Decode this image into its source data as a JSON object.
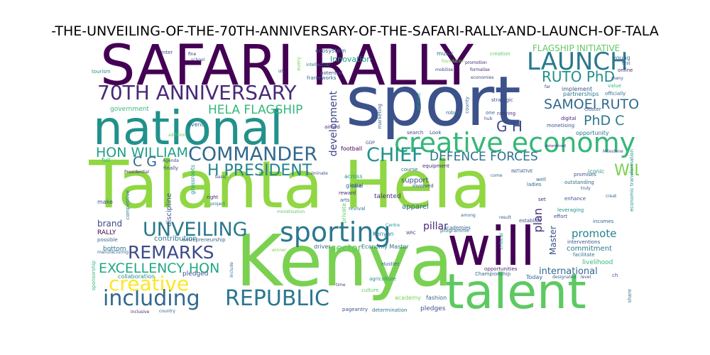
{
  "title": "-THE-UNVEILING-OF-THE-70TH-ANNIVERSARY-OF-THE-SAFARI-RALLY-AND-LAUNCH-OF-TALA",
  "palette": {
    "dark_purple": "#440154",
    "indigo": "#3b528b",
    "blue": "#31688e",
    "teal": "#21918c",
    "sea_green": "#35b779",
    "green": "#5ec962",
    "lime": "#90d743",
    "yellow": "#fde725"
  },
  "words": [
    {
      "text": "Talanta Hela",
      "color": "#90d743"
    },
    {
      "text": "Kenya",
      "color": "#7ad151"
    },
    {
      "text": "SAFARI RALLY",
      "color": "#440154"
    },
    {
      "text": "sport",
      "color": "#3b528b"
    },
    {
      "text": "will",
      "color": "#440154"
    },
    {
      "text": "national",
      "color": "#21918c"
    },
    {
      "text": "talent",
      "color": "#5ec962"
    },
    {
      "text": "sporting",
      "color": "#2a788e"
    },
    {
      "text": "creative economy",
      "color": "#35b779"
    },
    {
      "text": "70TH ANNIVERSARY",
      "color": "#482878"
    },
    {
      "text": "LAUNCH",
      "color": "#2a788e"
    },
    {
      "text": "including",
      "color": "#31688e"
    },
    {
      "text": "REPUBLIC",
      "color": "#2a788e"
    },
    {
      "text": "creative",
      "color": "#fde725"
    },
    {
      "text": "COMMANDER",
      "color": "#31688e"
    },
    {
      "text": "UNVEILING",
      "color": "#2a788e"
    },
    {
      "text": "CHIEF",
      "color": "#21918c"
    },
    {
      "text": "REMARKS",
      "color": "#3e4989"
    },
    {
      "text": "H PRESIDENT",
      "color": "#26828e"
    },
    {
      "text": "WILLIAM SAMOEI",
      "color": "#7ad151"
    },
    {
      "text": "HON WILLIAM",
      "color": "#1f9e89"
    },
    {
      "text": "EXCELLENCY HON",
      "color": "#22a884"
    },
    {
      "text": "HELA FLAGSHIP",
      "color": "#35b779"
    },
    {
      "text": "RUTO PhD",
      "color": "#21918c"
    },
    {
      "text": "SAMOEI RUTO",
      "color": "#31688e"
    },
    {
      "text": "DEFENCE FORCES",
      "color": "#2c728e"
    },
    {
      "text": "G H",
      "color": "#3e4989"
    },
    {
      "text": "PhD C",
      "color": "#2a788e"
    },
    {
      "text": "C G",
      "color": "#31688e"
    },
    {
      "text": "FLAGSHIP INITIATIVE",
      "color": "#5ec962"
    },
    {
      "text": "promote",
      "color": "#26828e"
    },
    {
      "text": "international",
      "color": "#31688e"
    },
    {
      "text": "Master",
      "color": "#3b528b"
    },
    {
      "text": "plan",
      "color": "#472d7b"
    },
    {
      "text": "pillar",
      "color": "#482878"
    },
    {
      "text": "development",
      "color": "#3e4989"
    },
    {
      "text": "sector",
      "color": "#5ec962"
    },
    {
      "text": "Innovation",
      "color": "#1f9e89"
    },
    {
      "text": "commitment",
      "color": "#2a788e"
    },
    {
      "text": "livelihood",
      "color": "#35b779"
    },
    {
      "text": "apparel",
      "color": "#31688e"
    },
    {
      "text": "support",
      "color": "#3b528b"
    },
    {
      "text": "talented",
      "color": "#472d7b"
    },
    {
      "text": "brand",
      "color": "#3e4989"
    },
    {
      "text": "RALLY",
      "color": "#440154"
    },
    {
      "text": "contribution",
      "color": "#2a788e"
    },
    {
      "text": "collaboration",
      "color": "#21918c"
    },
    {
      "text": "pledged",
      "color": "#3b528b"
    },
    {
      "text": "bottom",
      "color": "#2c728e"
    },
    {
      "text": "football",
      "color": "#440154"
    },
    {
      "text": "academy",
      "color": "#7ad151"
    },
    {
      "text": "fashion",
      "color": "#31688e"
    },
    {
      "text": "pledges",
      "color": "#3b528b"
    },
    {
      "text": "Today",
      "color": "#31688e"
    },
    {
      "text": "government",
      "color": "#35b779"
    },
    {
      "text": "ecosystem",
      "color": "#31688e"
    },
    {
      "text": "implement",
      "color": "#3b528b"
    },
    {
      "text": "partnerships",
      "color": "#2a788e"
    },
    {
      "text": "officially",
      "color": "#2c728e"
    },
    {
      "text": "rallying",
      "color": "#472d7b"
    },
    {
      "text": "digital",
      "color": "#482878"
    },
    {
      "text": "monetising",
      "color": "#3b528b"
    },
    {
      "text": "opportunity",
      "color": "#2c728e"
    },
    {
      "text": "promises",
      "color": "#3b528b"
    },
    {
      "text": "outstanding",
      "color": "#31688e"
    },
    {
      "text": "iconic",
      "color": "#1f9e89"
    },
    {
      "text": "enhance",
      "color": "#3b528b"
    },
    {
      "text": "ladies",
      "color": "#31688e"
    },
    {
      "text": "leveraging",
      "color": "#21918c"
    },
    {
      "text": "effort",
      "color": "#3e4989"
    },
    {
      "text": "incomes",
      "color": "#31688e"
    },
    {
      "text": "interventions",
      "color": "#3b528b"
    },
    {
      "text": "facilitate",
      "color": "#2c728e"
    },
    {
      "text": "Kenyan",
      "color": "#2a788e"
    },
    {
      "text": "Economy Master",
      "color": "#2c728e"
    },
    {
      "text": "driver",
      "color": "#31688e"
    },
    {
      "text": "winner",
      "color": "#7ad151"
    },
    {
      "text": "culture",
      "color": "#5ec962"
    },
    {
      "text": "agriculture",
      "color": "#21918c"
    },
    {
      "text": "Championship",
      "color": "#31688e"
    },
    {
      "text": "opportunities",
      "color": "#482878"
    },
    {
      "text": "designated",
      "color": "#31688e"
    },
    {
      "text": "level",
      "color": "#3e4989"
    },
    {
      "text": "pageantry",
      "color": "#3b528b"
    },
    {
      "text": "determination",
      "color": "#2a788e"
    },
    {
      "text": "entrepreneurship",
      "color": "#31688e"
    },
    {
      "text": "manufacturing",
      "color": "#31688e"
    },
    {
      "text": "possible",
      "color": "#31688e"
    },
    {
      "text": "make",
      "color": "#3b528b"
    },
    {
      "text": "competitive",
      "color": "#2c728e"
    },
    {
      "text": "discipline",
      "color": "#3b528b"
    },
    {
      "text": "grassroots",
      "color": "#21918c"
    },
    {
      "text": "Presidential",
      "color": "#482878"
    },
    {
      "text": "finally",
      "color": "#3e4989"
    },
    {
      "text": "full",
      "color": "#35b779"
    },
    {
      "text": "Agenda",
      "color": "#3e4989"
    },
    {
      "text": "addition",
      "color": "#5ec962"
    },
    {
      "text": "event",
      "color": "#31688e"
    },
    {
      "text": "tourism",
      "color": "#21918c"
    },
    {
      "text": "music",
      "color": "#31688e"
    },
    {
      "text": "creation",
      "color": "#5ec962"
    },
    {
      "text": "promotion",
      "color": "#482878"
    },
    {
      "text": "mobilise",
      "color": "#3e4989"
    },
    {
      "text": "formalise",
      "color": "#482878"
    },
    {
      "text": "foundation",
      "color": "#7ad151"
    },
    {
      "text": "young",
      "color": "#31688e"
    },
    {
      "text": "first",
      "color": "#3b528b"
    },
    {
      "text": "online",
      "color": "#482878"
    },
    {
      "text": "value",
      "color": "#35b779"
    },
    {
      "text": "far",
      "color": "#3e4989"
    },
    {
      "text": "frameworks",
      "color": "#31688e"
    },
    {
      "text": "intellectual",
      "color": "#2c728e"
    },
    {
      "text": "potential",
      "color": "#3e4989"
    },
    {
      "text": "every",
      "color": "#7ad151"
    },
    {
      "text": "global",
      "color": "#31688e"
    },
    {
      "text": "across",
      "color": "#21918c"
    },
    {
      "text": "culminate",
      "color": "#3b528b"
    },
    {
      "text": "revival",
      "color": "#2a788e"
    },
    {
      "text": "take",
      "color": "#3b528b"
    },
    {
      "text": "reward",
      "color": "#482878"
    },
    {
      "text": "arts",
      "color": "#31688e"
    },
    {
      "text": "right",
      "color": "#482878"
    },
    {
      "text": "project",
      "color": "#31688e"
    },
    {
      "text": "basis",
      "color": "#3e4989"
    },
    {
      "text": "monetisation",
      "color": "#5ec962"
    },
    {
      "text": "robust",
      "color": "#31688e"
    },
    {
      "text": "search",
      "color": "#3e4989"
    },
    {
      "text": "Look",
      "color": "#3b528b"
    },
    {
      "text": "county",
      "color": "#31688e"
    },
    {
      "text": "aimed",
      "color": "#482878"
    },
    {
      "text": "strategic",
      "color": "#3e4989"
    },
    {
      "text": "course",
      "color": "#31688e"
    },
    {
      "text": "involved",
      "color": "#3e4989"
    },
    {
      "text": "equipment",
      "color": "#482878"
    },
    {
      "text": "academies",
      "color": "#31688e"
    },
    {
      "text": "private",
      "color": "#5ec962"
    },
    {
      "text": "programme",
      "color": "#31688e"
    },
    {
      "text": "result",
      "color": "#3b528b"
    },
    {
      "text": "establish",
      "color": "#3b528b"
    },
    {
      "text": "critical",
      "color": "#21918c"
    },
    {
      "text": "Hustler",
      "color": "#31688e"
    },
    {
      "text": "time",
      "color": "#3e4989"
    },
    {
      "text": "include",
      "color": "#31688e"
    },
    {
      "text": "share",
      "color": "#2a788e"
    },
    {
      "text": "sponsorship",
      "color": "#35b779"
    },
    {
      "text": "inclusive",
      "color": "#482878"
    },
    {
      "text": "country",
      "color": "#31688e"
    },
    {
      "text": "among",
      "color": "#31688e"
    },
    {
      "text": "well",
      "color": "#31688e"
    },
    {
      "text": "set",
      "color": "#482878"
    },
    {
      "text": "come",
      "color": "#31688e"
    },
    {
      "text": "economic transformation",
      "color": "#21918c"
    },
    {
      "text": "INITIATIVE",
      "color": "#3b528b"
    },
    {
      "text": "athletic",
      "color": "#21918c"
    },
    {
      "text": "marketing",
      "color": "#31688e"
    },
    {
      "text": "GDP",
      "color": "#3b528b"
    },
    {
      "text": "one",
      "color": "#31688e"
    },
    {
      "text": "hub",
      "color": "#3e4989"
    },
    {
      "text": "economies",
      "color": "#3e4989"
    },
    {
      "text": "cluster",
      "color": "#3b528b"
    },
    {
      "text": "Milestone",
      "color": "#3b528b"
    },
    {
      "text": "determined",
      "color": "#482878"
    },
    {
      "text": "inter",
      "color": "#3e4989"
    },
    {
      "text": "fine",
      "color": "#482878"
    },
    {
      "text": "school",
      "color": "#3e4989"
    },
    {
      "text": "WRC",
      "color": "#3e4989"
    },
    {
      "text": "Centre",
      "color": "#21918c"
    },
    {
      "text": "many",
      "color": "#3e4989"
    },
    {
      "text": "ch",
      "color": "#3b528b"
    },
    {
      "text": "us",
      "color": "#3e4989"
    },
    {
      "text": "truly",
      "color": "#3b528b"
    },
    {
      "text": "creat",
      "color": "#31688e"
    }
  ]
}
